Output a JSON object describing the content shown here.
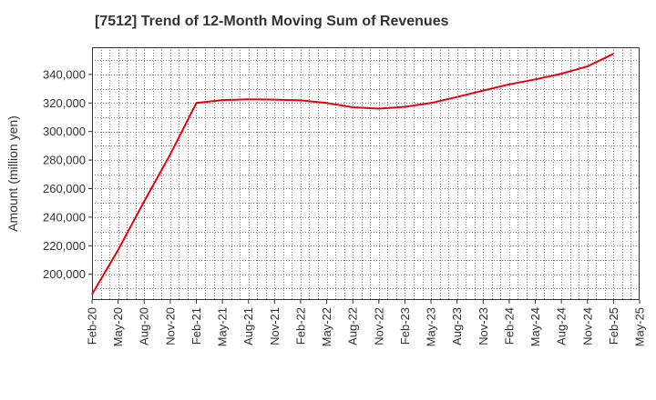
{
  "title": "[7512]  Trend of 12-Month Moving Sum of Revenues",
  "chart_data": {
    "type": "line",
    "title": "[7512]  Trend of 12-Month Moving Sum of Revenues",
    "xlabel": "",
    "ylabel": "Amount (million yen)",
    "ylim": [
      182000,
      359000
    ],
    "yticks": [
      200000,
      220000,
      240000,
      260000,
      280000,
      300000,
      320000,
      340000
    ],
    "ytick_labels": [
      "200,000",
      "220,000",
      "240,000",
      "260,000",
      "280,000",
      "300,000",
      "320,000",
      "340,000"
    ],
    "x_tick_labels": [
      "Feb-20",
      "May-20",
      "Aug-20",
      "Nov-20",
      "Feb-21",
      "May-21",
      "Aug-21",
      "Nov-21",
      "Feb-22",
      "May-22",
      "Aug-22",
      "Nov-22",
      "Feb-23",
      "May-23",
      "Aug-23",
      "Nov-23",
      "Feb-24",
      "May-24",
      "Aug-24",
      "Nov-24",
      "Feb-25",
      "May-25"
    ],
    "grid": true,
    "line_color": "#e8000b",
    "series": [
      {
        "x": [
          "Feb-20",
          "May-20",
          "Aug-20",
          "Nov-20",
          "Feb-21",
          "May-21",
          "Aug-21",
          "Nov-21",
          "Feb-22",
          "May-22",
          "Aug-22",
          "Nov-22",
          "Feb-23",
          "May-23",
          "Aug-23",
          "Nov-23",
          "Feb-24",
          "May-24",
          "Aug-24",
          "Nov-24",
          "Feb-25"
        ],
        "values": [
          186000,
          217000,
          251000,
          284000,
          320000,
          322000,
          322500,
          322300,
          321800,
          320000,
          317000,
          316000,
          317300,
          320000,
          324200,
          328700,
          333000,
          336500,
          340500,
          345600,
          354500
        ]
      }
    ]
  }
}
